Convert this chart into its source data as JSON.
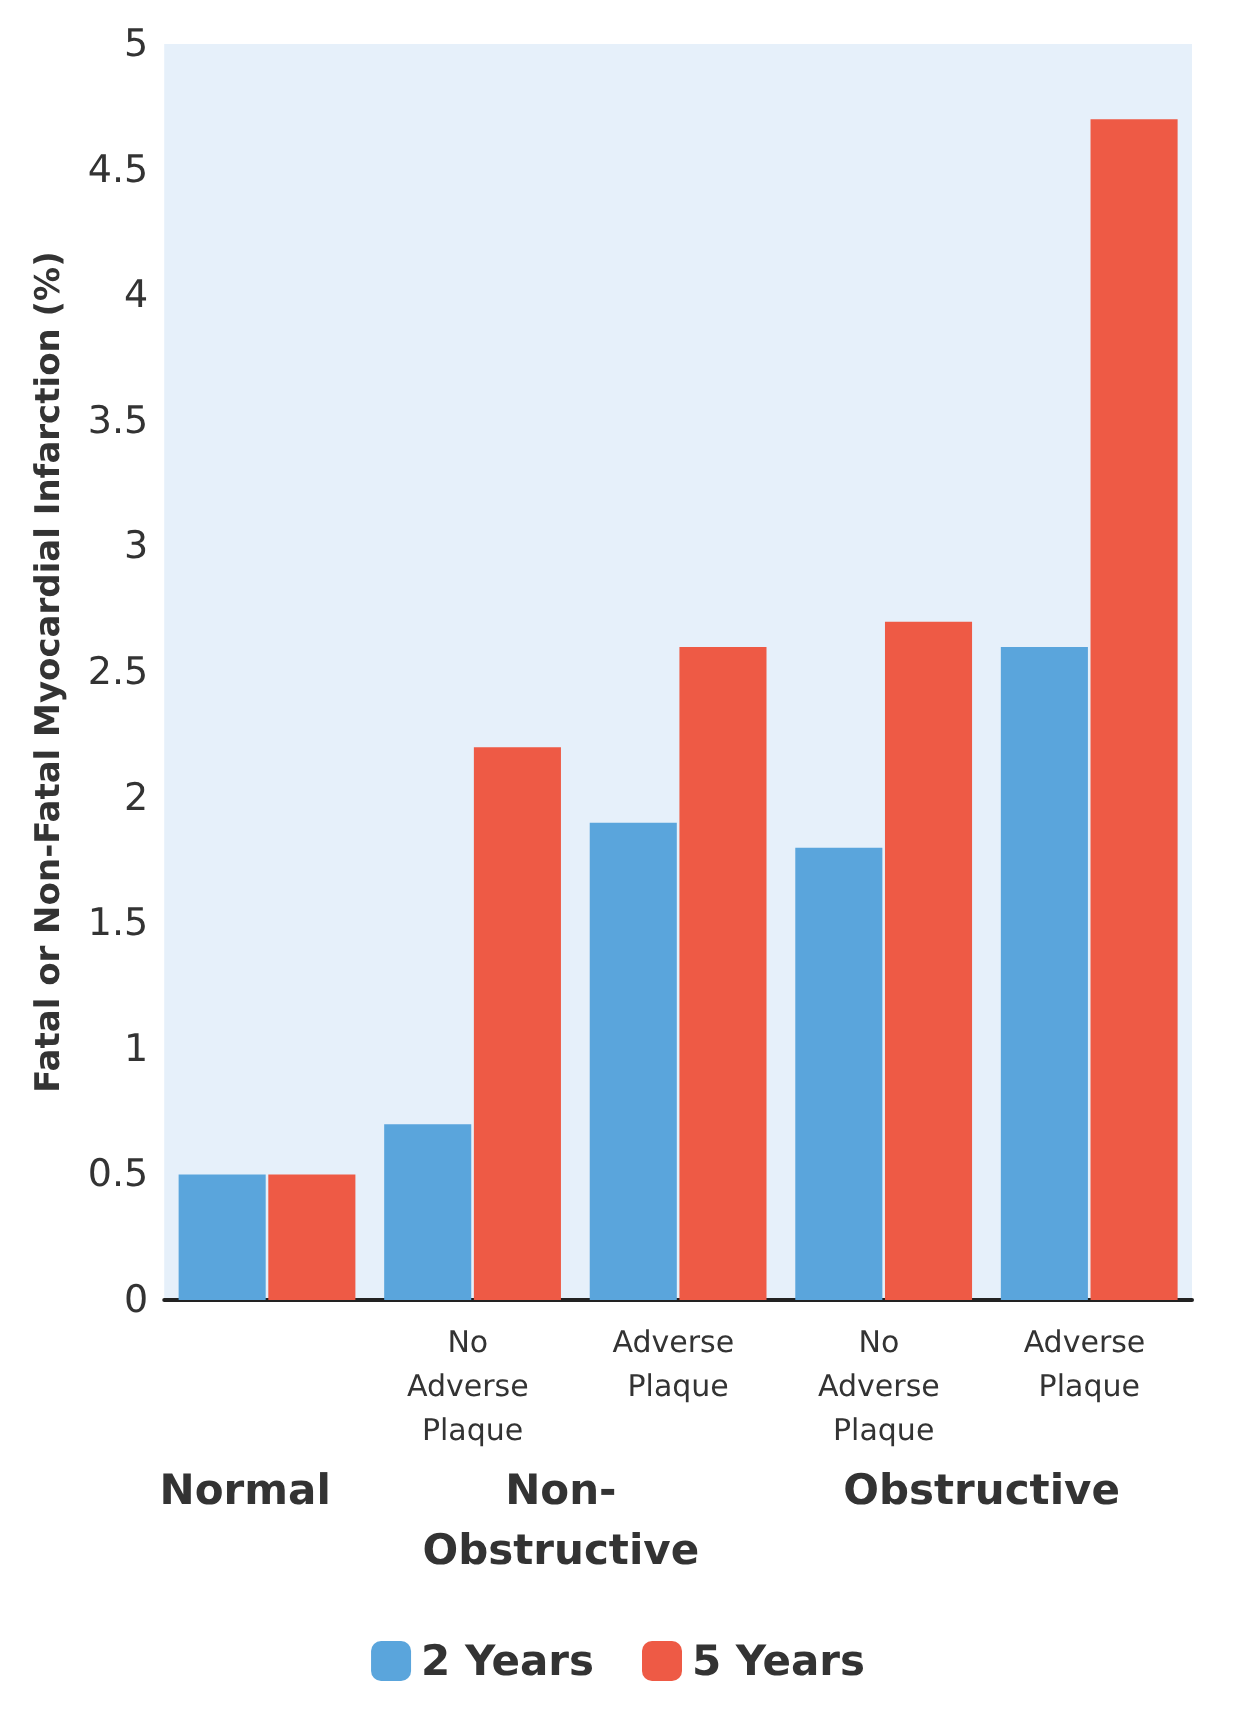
{
  "chart_data": {
    "type": "bar",
    "ylabel": "Fatal or Non-Fatal Myocardial Infarction (%)",
    "categories": [
      null,
      "No Adverse Plaque",
      "Adverse Plaque",
      "No Adverse Plaque",
      "Adverse Plaque"
    ],
    "series": [
      {
        "name": "2 Years",
        "color": "#5aa5dc",
        "values": [
          0.5,
          0.7,
          1.9,
          1.8,
          2.6
        ]
      },
      {
        "name": "5 Years",
        "color": "#ee5a45",
        "values": [
          0.5,
          2.2,
          2.6,
          2.7,
          4.7
        ]
      }
    ],
    "ylim": [
      0,
      5
    ],
    "yticks": [
      0,
      0.5,
      1,
      1.5,
      2,
      2.5,
      3,
      3.5,
      4,
      4.5,
      5
    ],
    "grid": false,
    "legend": "bottom",
    "annotations": [
      "Normal",
      "Non-\nObstructive",
      "Obstructive"
    ]
  }
}
